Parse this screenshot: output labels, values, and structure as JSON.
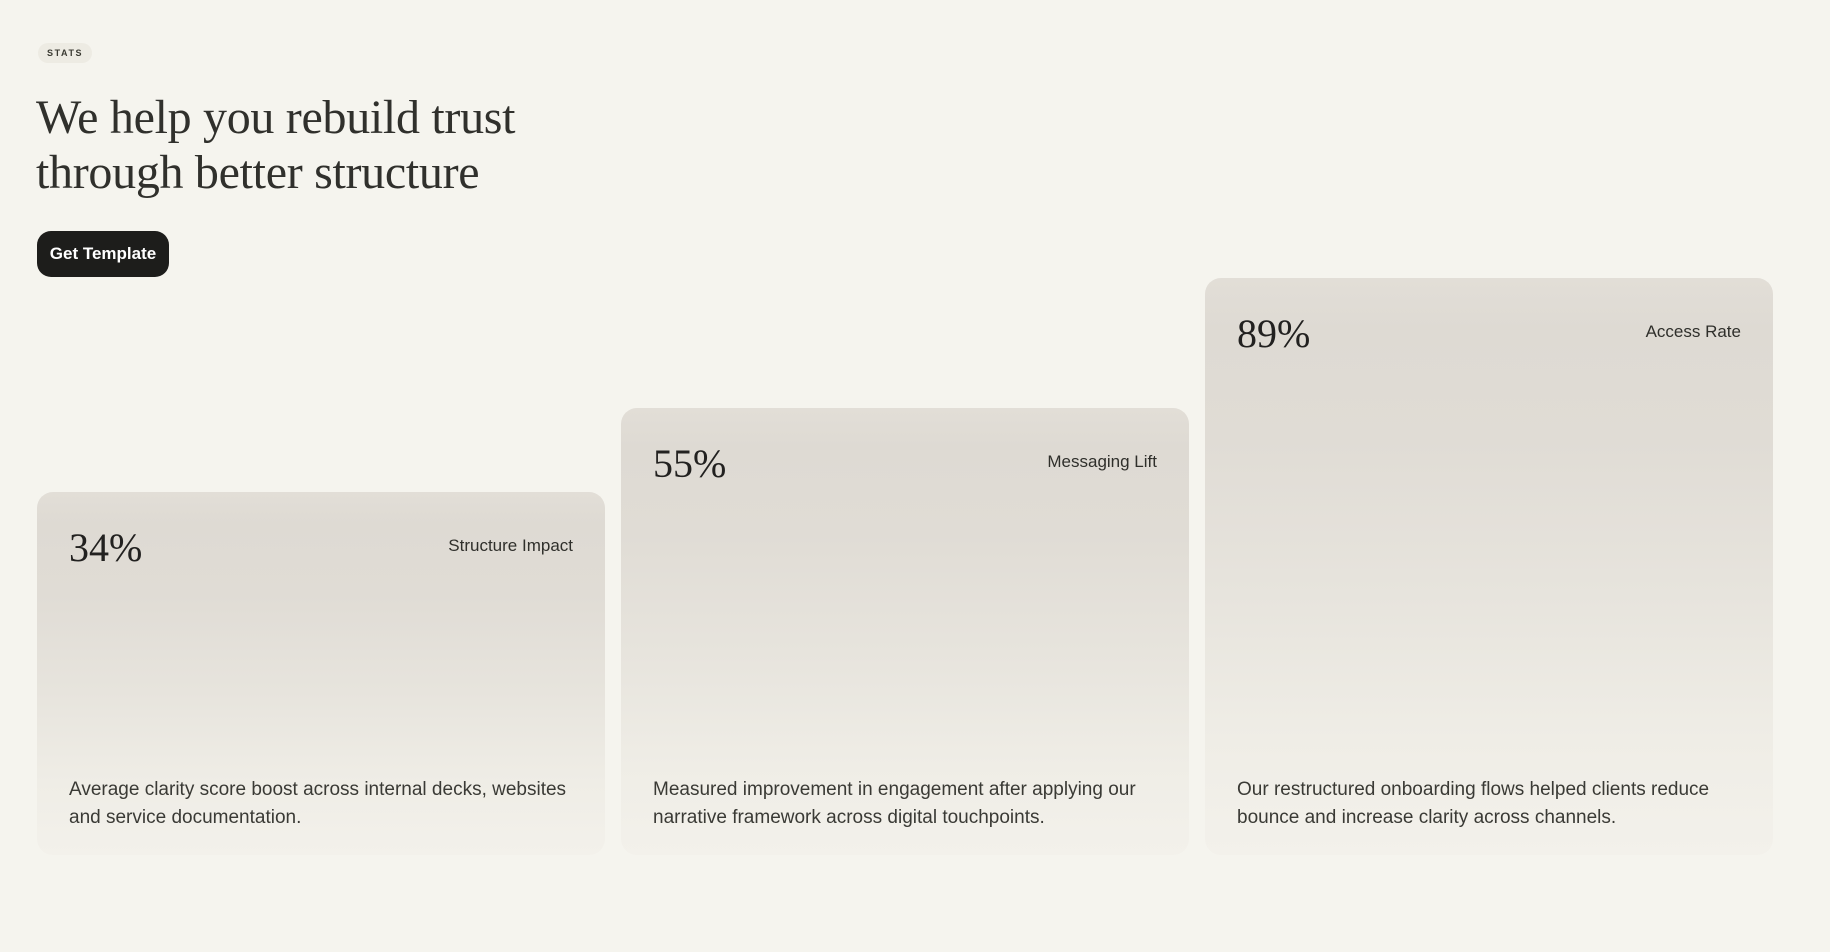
{
  "hero": {
    "badge": "STATS",
    "heading_line1": "We help you rebuild trust",
    "heading_line2": "through better structure",
    "cta_label": "Get Template"
  },
  "stats_cards": [
    {
      "value": "34%",
      "label": "Structure Impact",
      "description": "Average clarity score boost across internal decks, websites and service documentation."
    },
    {
      "value": "55%",
      "label": "Messaging Lift",
      "description": "Measured improvement in engagement after applying our narrative framework across digital touchpoints."
    },
    {
      "value": "89%",
      "label": "Access Rate",
      "description": "Our restructured onboarding flows helped clients reduce bounce and increase clarity across channels."
    }
  ],
  "colors": {
    "page_background": "#f5f4ee",
    "card_gradient_top": "#dedad3",
    "card_gradient_bottom": "#f3f1eb",
    "badge_background": "#edebe3",
    "button_background": "#1d1d1b",
    "button_text": "#ffffff",
    "heading_text": "#30302c",
    "body_text": "#3a3a35"
  }
}
